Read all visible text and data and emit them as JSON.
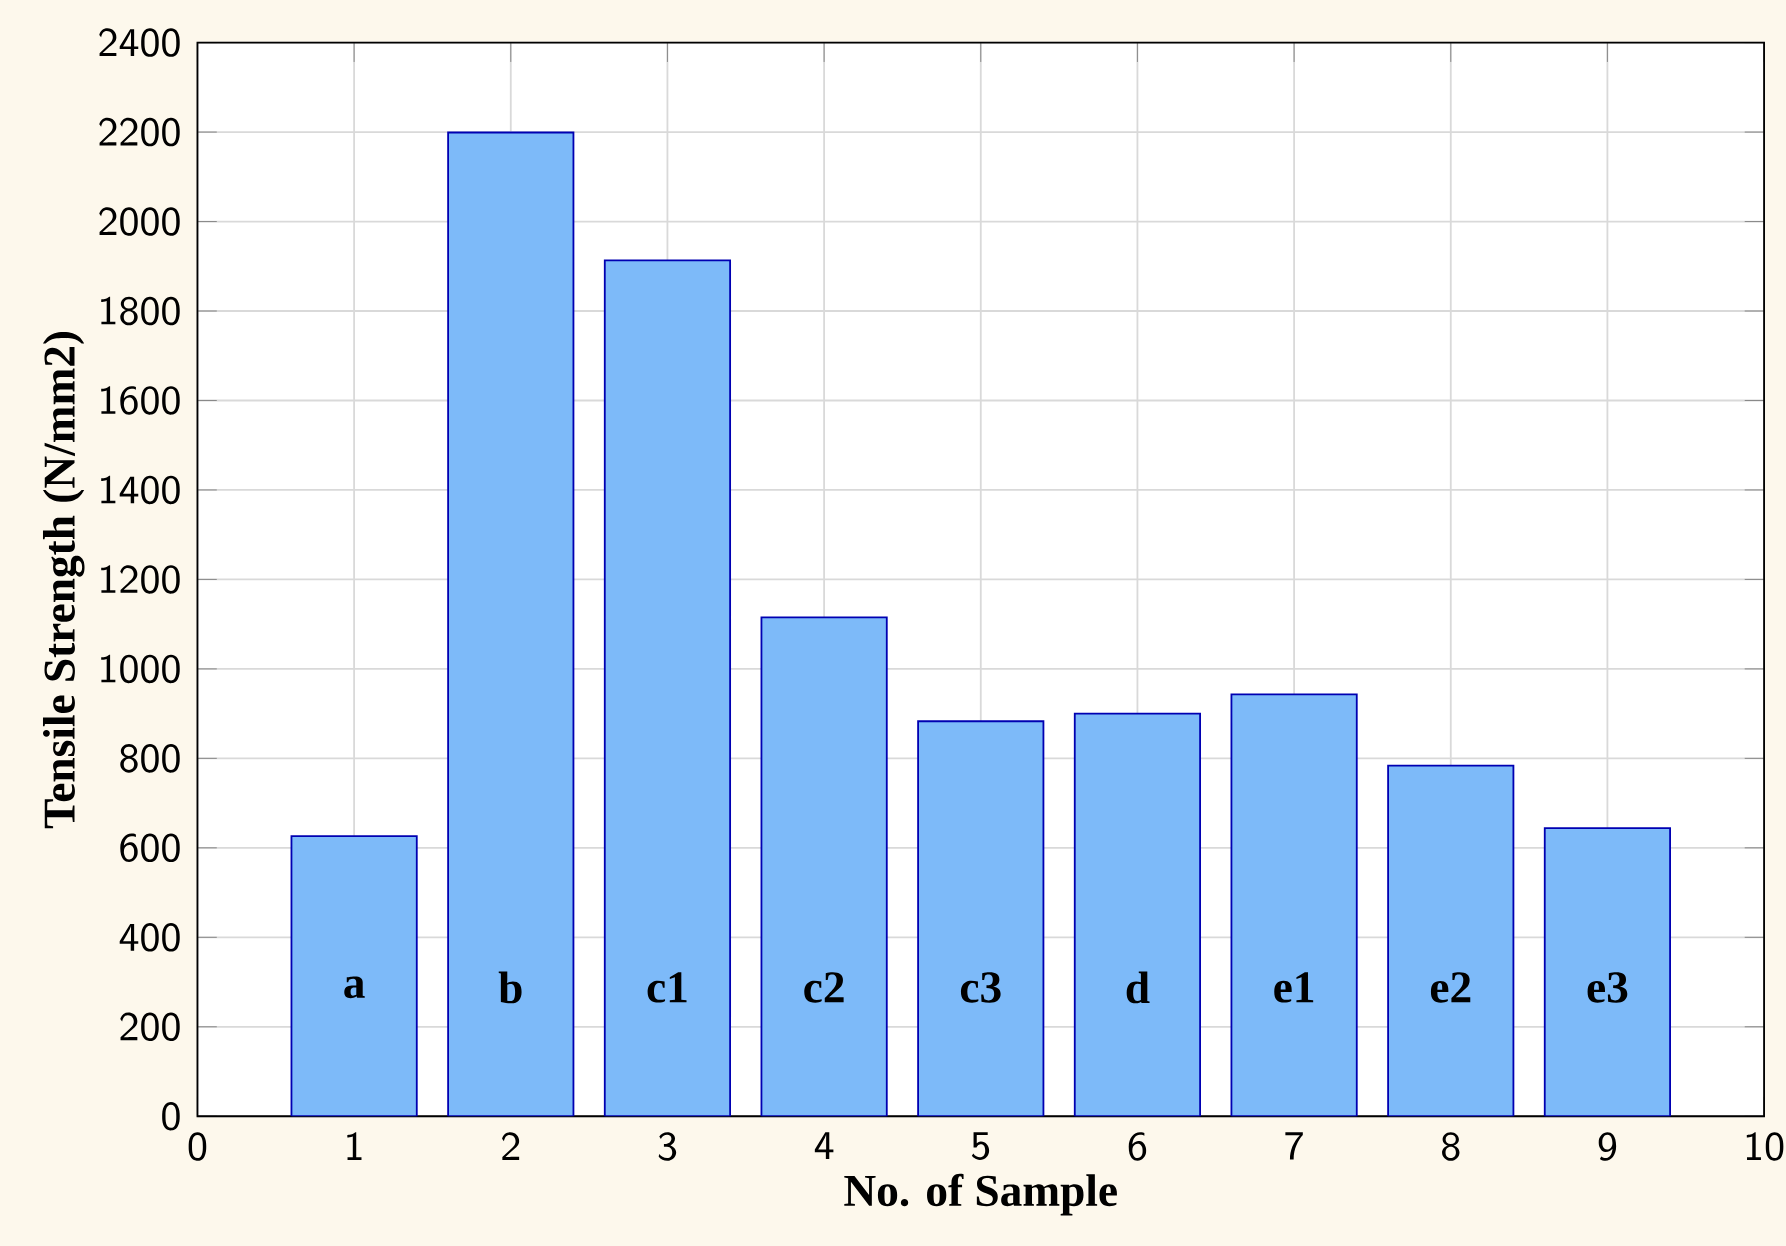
{
  "chart_data": {
    "type": "bar",
    "xlabel": "No. of Sample",
    "ylabel": "Tensile Strength (N/mm2)",
    "x": [
      1,
      2,
      3,
      4,
      5,
      6,
      7,
      8,
      9
    ],
    "values": [
      626,
      2199,
      1913,
      1115,
      883,
      900,
      943,
      784,
      644
    ],
    "color": "#7dbaf9",
    "xlim": [
      0,
      10
    ],
    "xticks": [
      0,
      1,
      2,
      3,
      4,
      5,
      6,
      7,
      8,
      9,
      10
    ],
    "ylim": [
      0,
      2400
    ],
    "yticks": [
      0,
      200,
      400,
      600,
      800,
      1000,
      1200,
      1400,
      1600,
      1800,
      2000,
      2200,
      2400
    ],
    "grid": true,
    "annotations": [
      "a",
      "b",
      "c1",
      "c2",
      "c3",
      "d",
      "e1",
      "e2",
      "e3"
    ]
  }
}
